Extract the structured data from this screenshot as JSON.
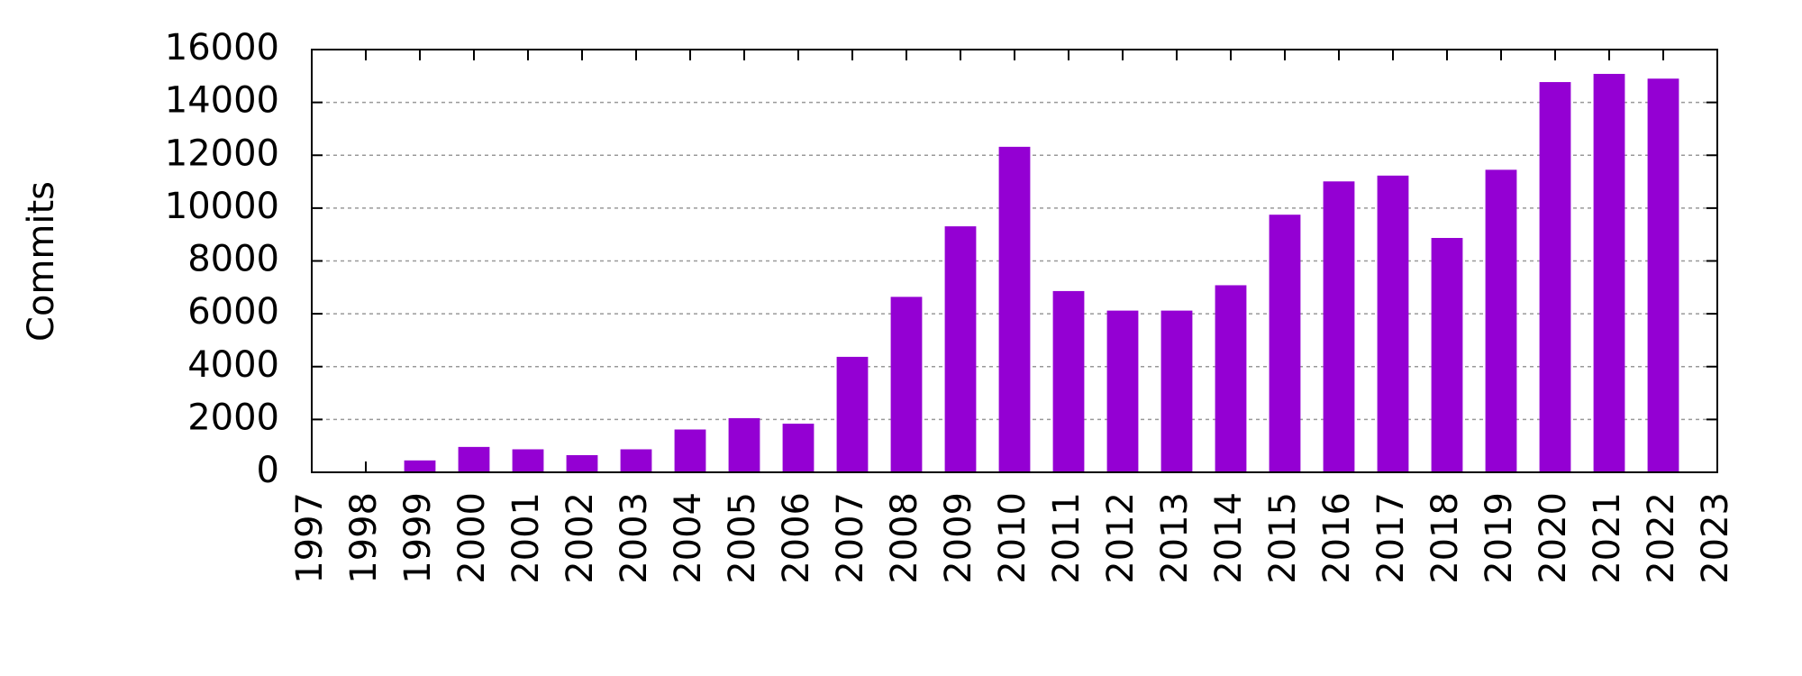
{
  "chart_data": {
    "type": "bar",
    "y_label": "Commits",
    "x": [
      1999,
      2000,
      2001,
      2002,
      2003,
      2004,
      2005,
      2006,
      2007,
      2008,
      2009,
      2010,
      2011,
      2012,
      2013,
      2014,
      2015,
      2016,
      2017,
      2018,
      2019,
      2020,
      2021,
      2022
    ],
    "values": [
      450,
      960,
      870,
      650,
      870,
      1620,
      2050,
      1840,
      4370,
      6640,
      9310,
      12320,
      6860,
      6120,
      6120,
      7080,
      9750,
      11010,
      11230,
      8870,
      11450,
      14770,
      15080,
      14900
    ],
    "color": "#9400d3",
    "xlim": [
      1997,
      2023
    ],
    "xticks": [
      1997,
      1998,
      1999,
      2000,
      2001,
      2002,
      2003,
      2004,
      2005,
      2006,
      2007,
      2008,
      2009,
      2010,
      2011,
      2012,
      2013,
      2014,
      2015,
      2016,
      2017,
      2018,
      2019,
      2020,
      2021,
      2022,
      2023
    ],
    "ylim": [
      0,
      16000
    ],
    "yticks": [
      0,
      2000,
      4000,
      6000,
      8000,
      10000,
      12000,
      14000,
      16000
    ],
    "grid": true
  }
}
